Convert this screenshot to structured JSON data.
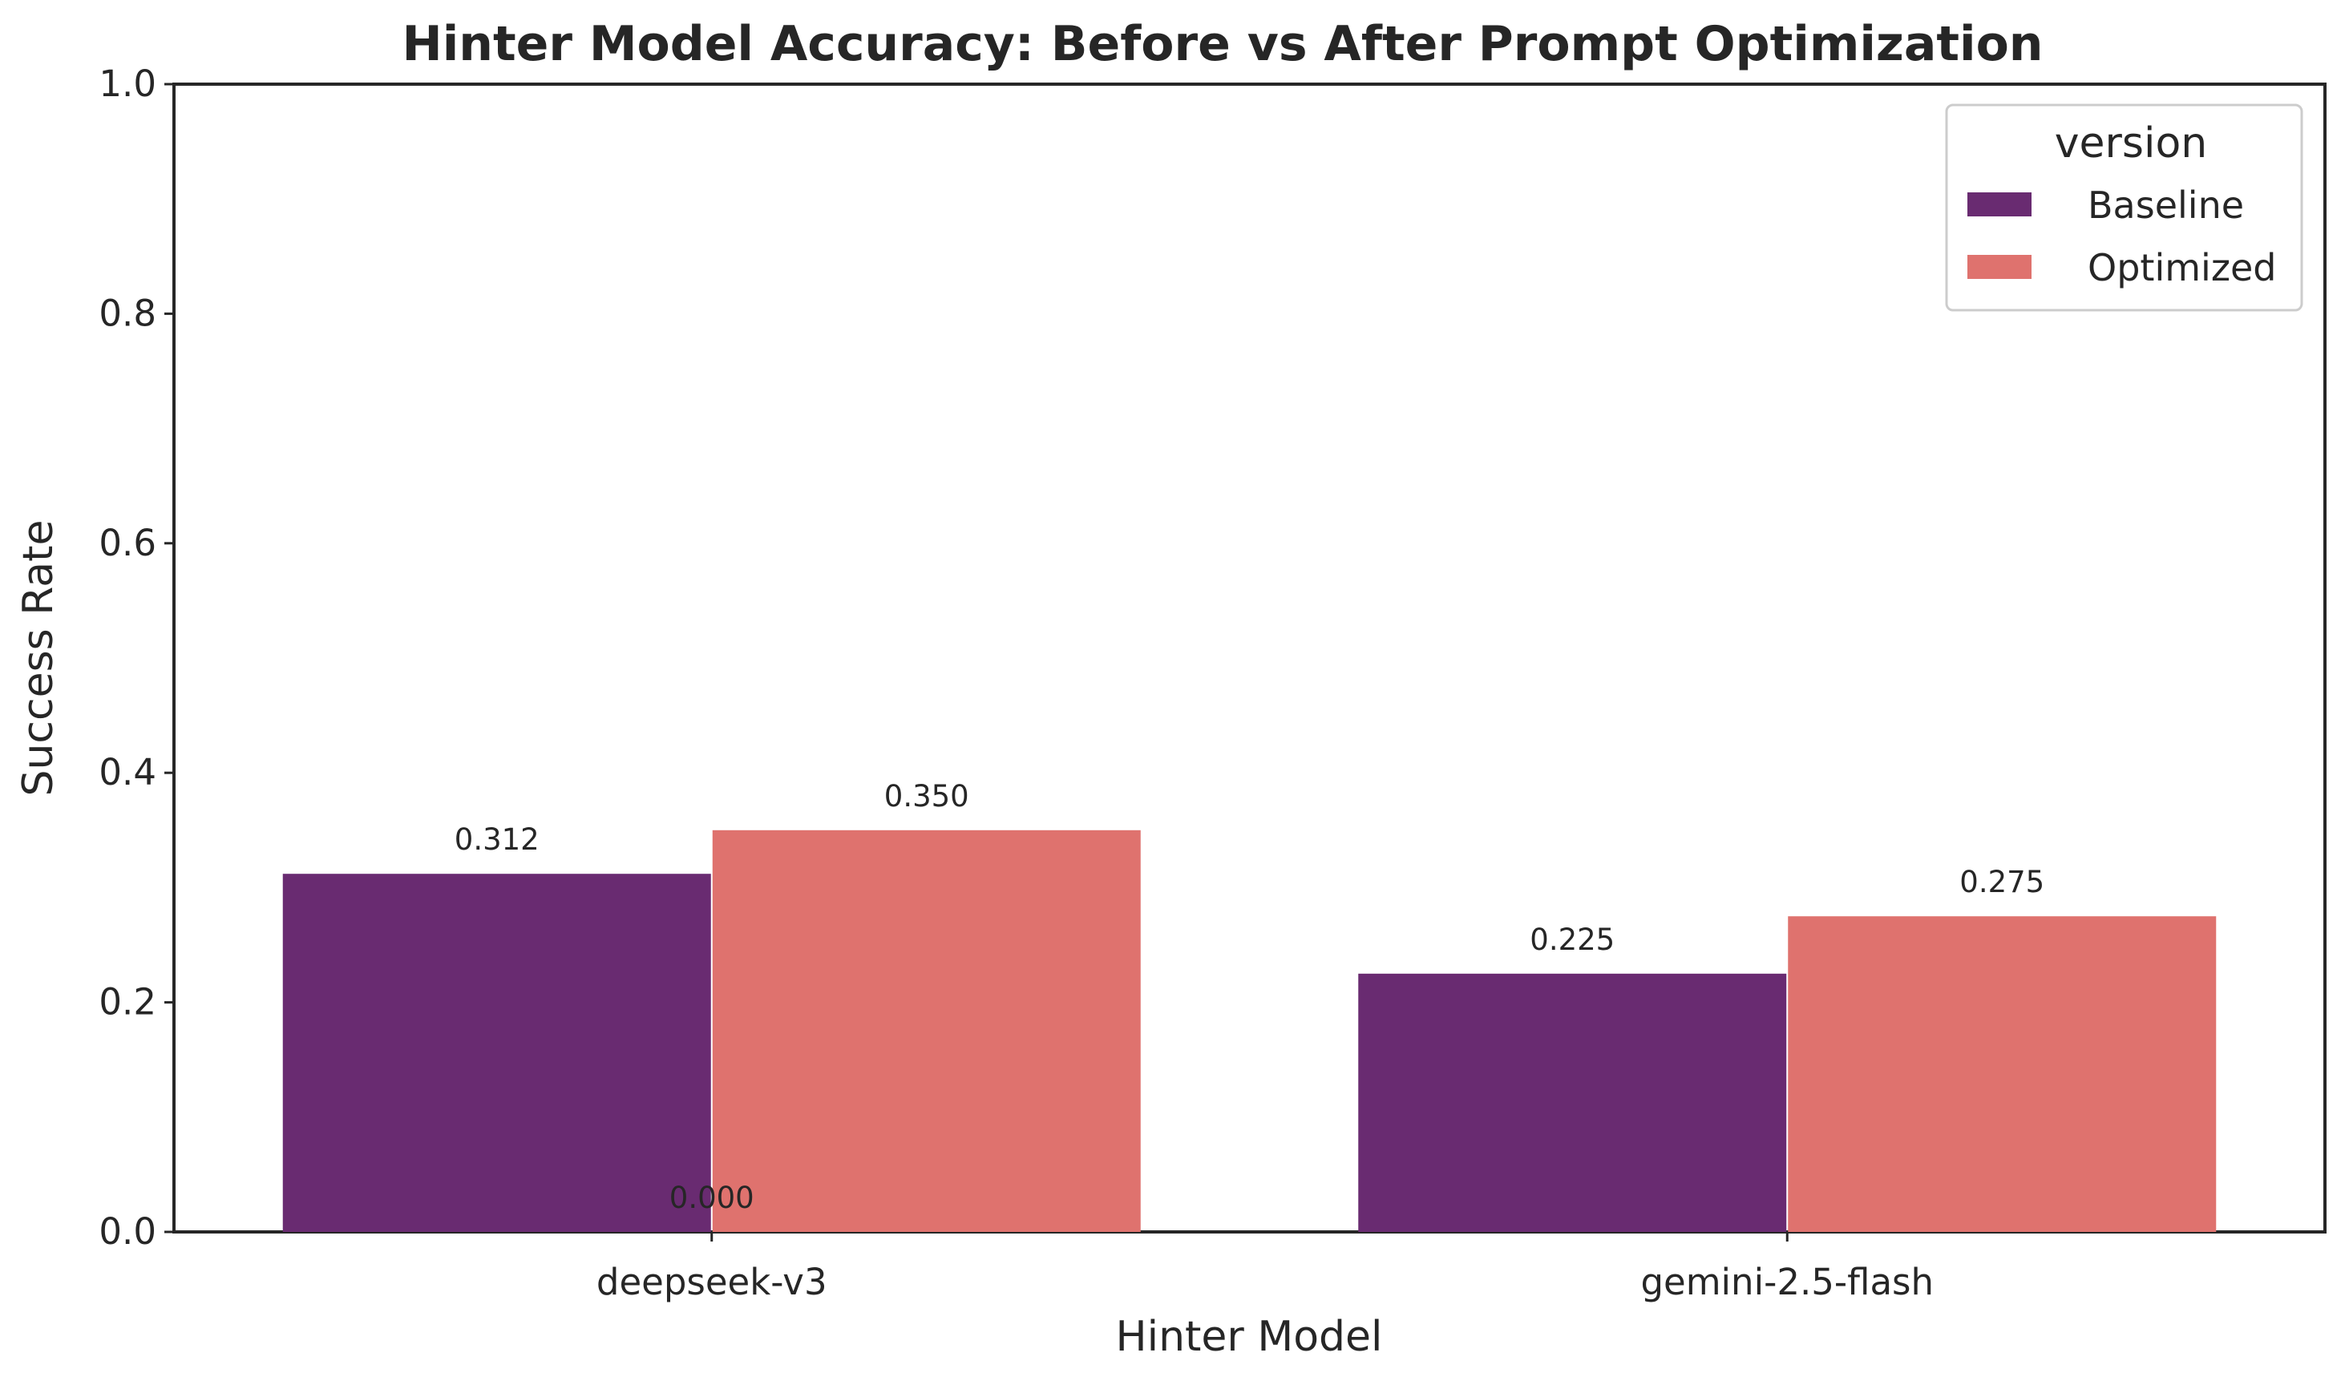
{
  "chart_data": {
    "type": "bar",
    "title": "Hinter Model Accuracy: Before vs After Prompt Optimization",
    "xlabel": "Hinter Model",
    "ylabel": "Success Rate",
    "categories": [
      "deepseek-v3",
      "gemini-2.5-flash"
    ],
    "series": [
      {
        "name": "Baseline",
        "color": "#692b71",
        "values": [
          0.312,
          0.225
        ]
      },
      {
        "name": "Optimized",
        "color": "#df726e",
        "values": [
          0.35,
          0.275
        ]
      }
    ],
    "ylim": [
      0,
      1.0
    ],
    "yticks": [
      0.0,
      0.2,
      0.4,
      0.6,
      0.8,
      1.0
    ],
    "ytick_labels": [
      "0.0",
      "0.2",
      "0.4",
      "0.6",
      "0.8",
      "1.0"
    ],
    "data_labels": [
      {
        "text": "0.312",
        "category": "deepseek-v3",
        "series": "Baseline",
        "value": 0.312
      },
      {
        "text": "0.350",
        "category": "deepseek-v3",
        "series": "Optimized",
        "value": 0.35
      },
      {
        "text": "0.225",
        "category": "gemini-2.5-flash",
        "series": "Baseline",
        "value": 0.225
      },
      {
        "text": "0.275",
        "category": "gemini-2.5-flash",
        "series": "Optimized",
        "value": 0.275
      },
      {
        "text": "0.000",
        "category": "deepseek-v3",
        "series": "",
        "value": 0.0
      }
    ],
    "legend": {
      "title": "version",
      "position": "top-right"
    },
    "grid": false
  }
}
